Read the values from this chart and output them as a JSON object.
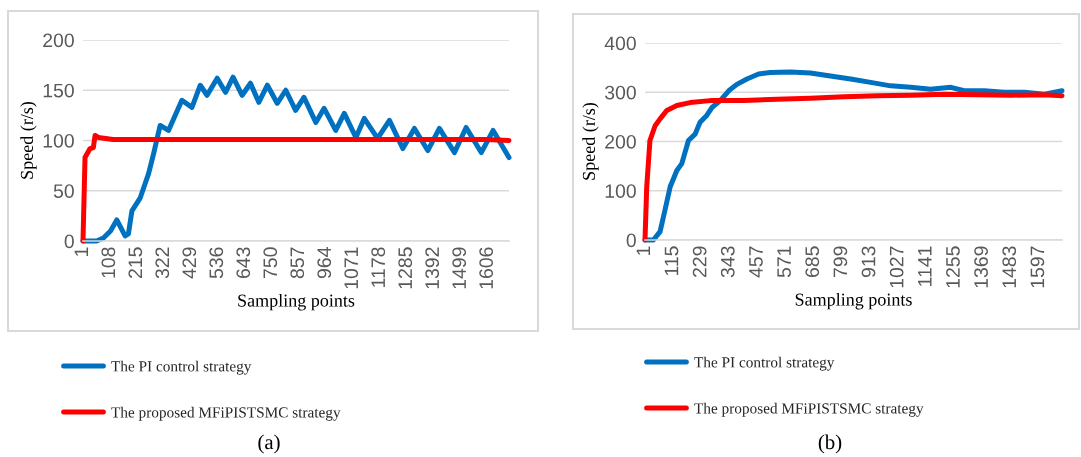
{
  "chart_data": [
    {
      "type": "line",
      "xlabel": "Sampling points",
      "ylabel": "Speed (r/s)",
      "xlim": [
        1,
        1690
      ],
      "xticks": [
        1,
        108,
        215,
        322,
        429,
        536,
        643,
        750,
        857,
        964,
        1071,
        1178,
        1285,
        1392,
        1499,
        1606
      ],
      "ylim": [
        0,
        200
      ],
      "yticks": [
        0,
        50,
        100,
        150,
        200
      ],
      "grid": "y",
      "legend": "bottom",
      "series": [
        {
          "name": "The PI control strategy",
          "color": "#0070c0",
          "x": [
            1,
            55,
            82,
            110,
            135,
            168,
            181,
            195,
            228,
            261,
            281,
            307,
            340,
            393,
            433,
            466,
            493,
            533,
            566,
            596,
            632,
            665,
            698,
            732,
            771,
            805,
            844,
            877,
            924,
            957,
            1003,
            1037,
            1083,
            1116,
            1169,
            1216,
            1269,
            1315,
            1368,
            1414,
            1474,
            1520,
            1580,
            1627,
            1690
          ],
          "values": [
            0,
            0,
            3,
            10,
            21,
            5,
            7,
            30,
            43,
            67,
            87,
            115,
            110,
            140,
            133,
            155,
            145,
            162,
            148,
            163,
            145,
            157,
            138,
            155,
            137,
            150,
            130,
            143,
            118,
            132,
            110,
            127,
            103,
            122,
            102,
            120,
            92,
            112,
            90,
            112,
            88,
            113,
            88,
            110,
            83
          ]
        },
        {
          "name": "The proposed MFiPISTSMC strategy",
          "color": "#ff0000",
          "x": [
            1,
            9,
            29,
            42,
            49,
            62,
            120,
            200,
            300,
            400,
            500,
            600,
            700,
            800,
            900,
            1000,
            1100,
            1200,
            1300,
            1400,
            1500,
            1600,
            1690
          ],
          "values": [
            0,
            83,
            92,
            93,
            105,
            103,
            101,
            101,
            101,
            101,
            101,
            101,
            101,
            101,
            101,
            101,
            101,
            101,
            101,
            101,
            101,
            101,
            100
          ]
        }
      ],
      "annotations": [
        "(a)"
      ]
    },
    {
      "type": "line",
      "xlabel": "Sampling points",
      "ylabel": "Speed (r/s)",
      "xlim": [
        1,
        1690
      ],
      "xticks": [
        1,
        115,
        229,
        343,
        457,
        571,
        685,
        799,
        913,
        1027,
        1141,
        1255,
        1369,
        1483,
        1597
      ],
      "ylim": [
        0,
        400
      ],
      "yticks": [
        0,
        100,
        200,
        300,
        400
      ],
      "grid": "y",
      "legend": "bottom",
      "series": [
        {
          "name": "The PI control strategy",
          "color": "#0070c0",
          "x": [
            1,
            35,
            62,
            82,
            103,
            130,
            150,
            177,
            204,
            224,
            251,
            272,
            306,
            340,
            373,
            414,
            461,
            509,
            590,
            671,
            752,
            834,
            915,
            996,
            1077,
            1158,
            1240,
            1294,
            1375,
            1456,
            1538,
            1619,
            1690
          ],
          "values": [
            0,
            0,
            17,
            61,
            108,
            141,
            155,
            202,
            215,
            239,
            253,
            269,
            283,
            303,
            316,
            327,
            337,
            340,
            341,
            339,
            333,
            327,
            320,
            313,
            310,
            306,
            310,
            303,
            303,
            300,
            300,
            296,
            303
          ]
        },
        {
          "name": "The proposed MFiPISTSMC strategy",
          "color": "#ff0000",
          "x": [
            1,
            8,
            21,
            42,
            62,
            89,
            130,
            184,
            265,
            400,
            536,
            671,
            807,
            942,
            1077,
            1213,
            1348,
            1484,
            1619,
            1690
          ],
          "values": [
            0,
            108,
            202,
            232,
            246,
            263,
            273,
            279,
            283,
            283,
            286,
            288,
            291,
            293,
            294,
            296,
            295,
            294,
            295,
            293
          ]
        }
      ],
      "annotations": [
        "(b)"
      ]
    }
  ]
}
